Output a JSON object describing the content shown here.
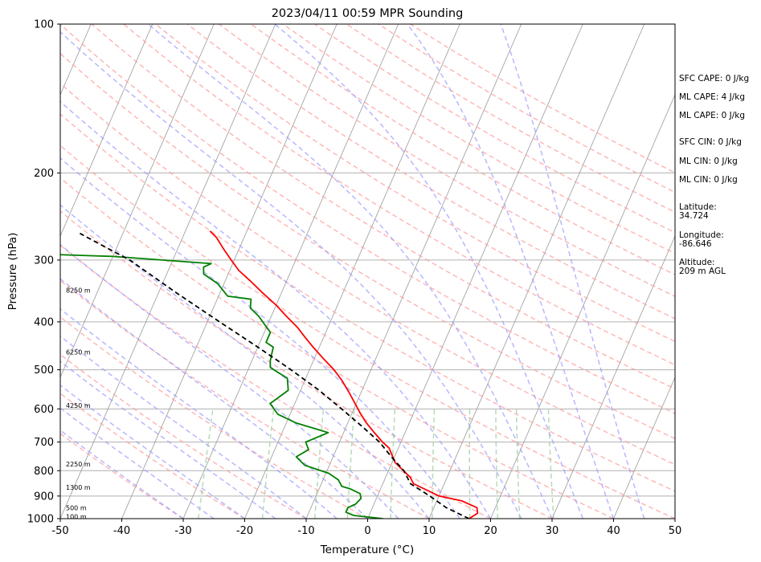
{
  "title": "2023/04/11 00:59 MPR Sounding",
  "xlabel": "Temperature (°C)",
  "ylabel": "Pressure (hPa)",
  "indices": [
    "SFC CAPE: 0 J/kg",
    "ML CAPE: 4 J/kg",
    "ML CAPE: 0 J/kg",
    "SFC CIN: 0 J/kg",
    "ML CIN: 0 J/kg",
    "ML CIN: 0 J/kg",
    "Latitude:\n34.724",
    "Longitude:\n-86.646",
    "Altitude:\n209 m AGL"
  ],
  "height_labels": [
    {
      "text": "8250 m",
      "p": 345
    },
    {
      "text": "6250 m",
      "p": 460
    },
    {
      "text": "4250 m",
      "p": 590
    },
    {
      "text": "2250 m",
      "p": 775
    },
    {
      "text": "1300 m",
      "p": 865
    },
    {
      "text": "500 m",
      "p": 950
    },
    {
      "text": "100 m",
      "p": 990
    }
  ],
  "colors": {
    "temperature": "#ff0000",
    "dewpoint": "#008000",
    "parcel": "#000000",
    "dry_adiabat": "#ff9999",
    "moist_adiabat": "#9999ff",
    "mixing_ratio": "#99cc99",
    "isotherm": "#999999"
  },
  "chart_data": {
    "type": "line",
    "title": "2023/04/11 00:59 MPR Sounding",
    "xlabel": "Temperature (°C)",
    "ylabel": "Pressure (hPa)",
    "xlim": [
      -50,
      50
    ],
    "ylim": [
      1000,
      100
    ],
    "y_scale": "log",
    "xticks": [
      -50,
      -40,
      -30,
      -20,
      -10,
      0,
      10,
      20,
      30,
      40,
      50
    ],
    "yticks": [
      1000,
      900,
      800,
      700,
      600,
      500,
      400,
      300,
      200,
      100
    ],
    "grid": true,
    "skew": "skew-T log-p",
    "series": [
      {
        "kind": "temperature",
        "points": [
          [
            16.5,
            1000
          ],
          [
            17.5,
            975
          ],
          [
            17.0,
            950
          ],
          [
            14.0,
            920
          ],
          [
            10.0,
            900
          ],
          [
            5.0,
            850
          ],
          [
            4.0,
            825
          ],
          [
            0.5,
            770
          ],
          [
            -1.5,
            720
          ],
          [
            -3.0,
            700
          ],
          [
            -5.0,
            670
          ],
          [
            -7.0,
            640
          ],
          [
            -8.5,
            615
          ],
          [
            -10.2,
            585
          ],
          [
            -12.0,
            555
          ],
          [
            -14.0,
            525
          ],
          [
            -16.0,
            500
          ],
          [
            -18.5,
            475
          ],
          [
            -21.0,
            450
          ],
          [
            -23.0,
            430
          ],
          [
            -25.0,
            410
          ],
          [
            -27.5,
            390
          ],
          [
            -30.0,
            370
          ],
          [
            -33.0,
            350
          ],
          [
            -36.0,
            330
          ],
          [
            -38.5,
            315
          ],
          [
            -40.5,
            300
          ],
          [
            -42.5,
            285
          ],
          [
            -44.5,
            270
          ],
          [
            -46.0,
            262
          ]
        ]
      },
      {
        "kind": "dewpoint",
        "points": [
          [
            2.5,
            1000
          ],
          [
            -2.5,
            985
          ],
          [
            -4.0,
            970
          ],
          [
            -4.0,
            950
          ],
          [
            -3.0,
            935
          ],
          [
            -2.5,
            910
          ],
          [
            -3.0,
            890
          ],
          [
            -5.0,
            870
          ],
          [
            -6.5,
            860
          ],
          [
            -7.5,
            835
          ],
          [
            -9.5,
            810
          ],
          [
            -14.0,
            780
          ],
          [
            -16.0,
            750
          ],
          [
            -14.5,
            725
          ],
          [
            -15.5,
            700
          ],
          [
            -12.5,
            670
          ],
          [
            -18.5,
            640
          ],
          [
            -22.0,
            615
          ],
          [
            -24.0,
            585
          ],
          [
            -22.0,
            550
          ],
          [
            -23.0,
            520
          ],
          [
            -26.5,
            495
          ],
          [
            -27.0,
            480
          ],
          [
            -27.5,
            450
          ],
          [
            -29.0,
            440
          ],
          [
            -29.0,
            420
          ],
          [
            -30.5,
            405
          ],
          [
            -32.0,
            390
          ],
          [
            -34.0,
            375
          ],
          [
            -34.5,
            360
          ],
          [
            -38.5,
            355
          ],
          [
            -41.0,
            335
          ],
          [
            -44.0,
            320
          ],
          [
            -44.5,
            310
          ],
          [
            -43.5,
            305
          ],
          [
            -60.0,
            295
          ],
          [
            -71.0,
            292
          ],
          [
            -80,
            292
          ]
        ]
      },
      {
        "kind": "parcel",
        "points": [
          [
            16.5,
            1000
          ],
          [
            12.0,
            950
          ],
          [
            8.5,
            900
          ],
          [
            4.5,
            850
          ],
          [
            2.5,
            800
          ],
          [
            -0.5,
            750
          ],
          [
            -3.5,
            700
          ],
          [
            -7.5,
            650
          ],
          [
            -12.0,
            600
          ],
          [
            -17.0,
            550
          ],
          [
            -23.0,
            500
          ],
          [
            -30.0,
            450
          ],
          [
            -38.0,
            400
          ],
          [
            -47.0,
            350
          ],
          [
            -57.0,
            300
          ],
          [
            -62.0,
            282
          ],
          [
            -67.0,
            265
          ]
        ]
      }
    ]
  }
}
